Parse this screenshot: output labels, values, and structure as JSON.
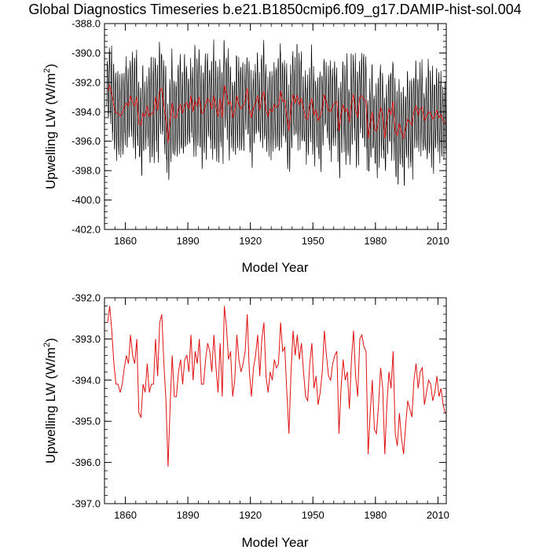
{
  "page": {
    "title": "Global Diagnostics Timeseries b.e21.B1850cmip6.f09_g17.DAMIP-hist-sol.004"
  },
  "chart_data": [
    {
      "type": "line",
      "title": "",
      "xlabel": "Model Year",
      "ylabel_main": "Upwelling LW (W/m",
      "ylabel_sup": "2",
      "ylabel_end": ")",
      "xlim": [
        1850,
        2014
      ],
      "ylim": [
        -402.0,
        -388.0
      ],
      "xticks": [
        1860,
        1890,
        1920,
        1950,
        1980,
        2010
      ],
      "yticks": [
        -402.0,
        -400.0,
        -398.0,
        -396.0,
        -394.0,
        -392.0,
        -390.0,
        -388.0
      ],
      "ytick_labels": [
        "-402.0",
        "-400.0",
        "-398.0",
        "-396.0",
        "-394.0",
        "-392.0",
        "-390.0",
        "-388.0"
      ],
      "grid": false,
      "legend": "none",
      "series": [
        {
          "kind": "monthly",
          "color": "#000000",
          "seasonal_amplitude": 2.8,
          "annual_anchors_x": [
            1851,
            1852,
            1853,
            1855,
            1857,
            1860,
            1863,
            1866,
            1869,
            1872,
            1876,
            1879,
            1881,
            1883,
            1886,
            1890,
            1894,
            1898,
            1902,
            1906,
            1908,
            1912,
            1916,
            1920,
            1924,
            1928,
            1932,
            1936,
            1938,
            1942,
            1946,
            1950,
            1954,
            1958,
            1962,
            1964,
            1968,
            1972,
            1974,
            1978,
            1982,
            1986,
            1990,
            1994,
            1998,
            2002,
            2006,
            2010,
            2013
          ],
          "annual_anchors_y": [
            -392.8,
            -392.2,
            -393.5,
            -394.1,
            -394.4,
            -393.5,
            -393.2,
            -394.8,
            -394.2,
            -393.8,
            -394.0,
            -392.6,
            -392.4,
            -396.1,
            -393.9,
            -393.5,
            -393.2,
            -393.6,
            -393.0,
            -394.2,
            -392.2,
            -393.8,
            -392.6,
            -394.1,
            -393.4,
            -393.6,
            -393.1,
            -393.5,
            -395.3,
            -393.2,
            -393.8,
            -394.0,
            -393.4,
            -394.3,
            -395.3,
            -393.9,
            -394.1,
            -393.2,
            -392.8,
            -395.6,
            -395.4,
            -394.4,
            -395.8,
            -394.6,
            -393.6,
            -394.3,
            -394.3,
            -394.7,
            -394.8
          ]
        },
        {
          "kind": "annual",
          "color": "#e01010",
          "values_ref": "chart_data.1.series.0"
        }
      ]
    },
    {
      "type": "line",
      "title": "",
      "xlabel": "Model Year",
      "ylabel_main": "Upwelling LW (W/m",
      "ylabel_sup": "2",
      "ylabel_end": ")",
      "xlim": [
        1850,
        2014
      ],
      "ylim": [
        -397.0,
        -392.0
      ],
      "xticks": [
        1860,
        1890,
        1920,
        1950,
        1980,
        2010
      ],
      "yticks": [
        -397.0,
        -396.0,
        -395.0,
        -394.0,
        -393.0,
        -392.0
      ],
      "ytick_labels": [
        "-397.0",
        "-396.0",
        "-395.0",
        "-394.0",
        "-393.0",
        "-392.0"
      ],
      "grid": false,
      "legend": "none",
      "series": [
        {
          "kind": "annual",
          "color": "#e01010",
          "x": [
            1851,
            1852,
            1853,
            1854,
            1855,
            1856,
            1857,
            1858,
            1859,
            1860,
            1861,
            1862,
            1863,
            1864,
            1865,
            1866,
            1867,
            1868,
            1869,
            1870,
            1871,
            1872,
            1873,
            1874,
            1875,
            1876,
            1877,
            1878,
            1879,
            1880,
            1881,
            1882,
            1883,
            1884,
            1885,
            1886,
            1887,
            1888,
            1889,
            1890,
            1891,
            1892,
            1893,
            1894,
            1895,
            1896,
            1897,
            1898,
            1899,
            1900,
            1901,
            1902,
            1903,
            1904,
            1905,
            1906,
            1907,
            1908,
            1909,
            1910,
            1911,
            1912,
            1913,
            1914,
            1915,
            1916,
            1917,
            1918,
            1919,
            1920,
            1921,
            1922,
            1923,
            1924,
            1925,
            1926,
            1927,
            1928,
            1929,
            1930,
            1931,
            1932,
            1933,
            1934,
            1935,
            1936,
            1937,
            1938,
            1939,
            1940,
            1941,
            1942,
            1943,
            1944,
            1945,
            1946,
            1947,
            1948,
            1949,
            1950,
            1951,
            1952,
            1953,
            1954,
            1955,
            1956,
            1957,
            1958,
            1959,
            1960,
            1961,
            1962,
            1963,
            1964,
            1965,
            1966,
            1967,
            1968,
            1969,
            1970,
            1971,
            1972,
            1973,
            1974,
            1975,
            1976,
            1977,
            1978,
            1979,
            1980,
            1981,
            1982,
            1983,
            1984,
            1985,
            1986,
            1987,
            1988,
            1989,
            1990,
            1991,
            1992,
            1993,
            1994,
            1995,
            1996,
            1997,
            1998,
            1999,
            2000,
            2001,
            2002,
            2003,
            2004,
            2005,
            2006,
            2007,
            2008,
            2009,
            2010,
            2011,
            2012,
            2013
          ],
          "values": [
            -392.6,
            -392.2,
            -392.8,
            -393.6,
            -394.1,
            -394.1,
            -394.3,
            -394.1,
            -393.7,
            -393.4,
            -393.6,
            -392.9,
            -393.4,
            -393.6,
            -393.0,
            -394.8,
            -394.9,
            -394.1,
            -394.3,
            -393.6,
            -394.3,
            -394.1,
            -394.1,
            -393.0,
            -393.9,
            -392.6,
            -392.4,
            -393.6,
            -394.5,
            -396.1,
            -394.6,
            -393.4,
            -394.4,
            -394.4,
            -393.8,
            -393.5,
            -394.1,
            -393.5,
            -393.4,
            -393.8,
            -392.9,
            -394.0,
            -393.3,
            -393.6,
            -393.0,
            -394.1,
            -394.1,
            -393.5,
            -393.1,
            -393.3,
            -393.8,
            -392.9,
            -393.7,
            -394.3,
            -393.1,
            -394.4,
            -392.2,
            -392.7,
            -393.5,
            -393.3,
            -394.4,
            -394.0,
            -392.9,
            -393.5,
            -393.8,
            -393.6,
            -393.3,
            -392.4,
            -393.8,
            -394.4,
            -393.7,
            -393.4,
            -392.9,
            -393.9,
            -393.0,
            -392.6,
            -393.9,
            -394.3,
            -393.8,
            -394.0,
            -393.5,
            -393.7,
            -393.6,
            -392.6,
            -393.3,
            -393.2,
            -394.3,
            -395.3,
            -393.8,
            -392.8,
            -393.4,
            -392.9,
            -393.5,
            -393.1,
            -393.8,
            -394.4,
            -394.5,
            -393.6,
            -393.1,
            -394.2,
            -393.9,
            -394.6,
            -394.3,
            -393.8,
            -392.8,
            -393.4,
            -393.9,
            -394.0,
            -393.6,
            -393.4,
            -393.3,
            -395.3,
            -394.2,
            -393.5,
            -394.0,
            -393.8,
            -394.7,
            -393.5,
            -392.8,
            -393.9,
            -394.4,
            -393.0,
            -392.9,
            -393.2,
            -393.3,
            -395.8,
            -394.8,
            -394.0,
            -395.2,
            -395.3,
            -394.6,
            -393.7,
            -394.2,
            -395.8,
            -394.6,
            -393.8,
            -394.2,
            -393.3,
            -395.3,
            -395.6,
            -394.8,
            -395.4,
            -395.8,
            -395.1,
            -394.5,
            -394.7,
            -394.9,
            -394.0,
            -393.6,
            -394.2,
            -393.8,
            -393.7,
            -394.6,
            -394.3,
            -394.0,
            -394.1,
            -394.5,
            -394.3,
            -393.9,
            -394.4,
            -394.2,
            -394.6,
            -394.8
          ]
        }
      ]
    }
  ]
}
